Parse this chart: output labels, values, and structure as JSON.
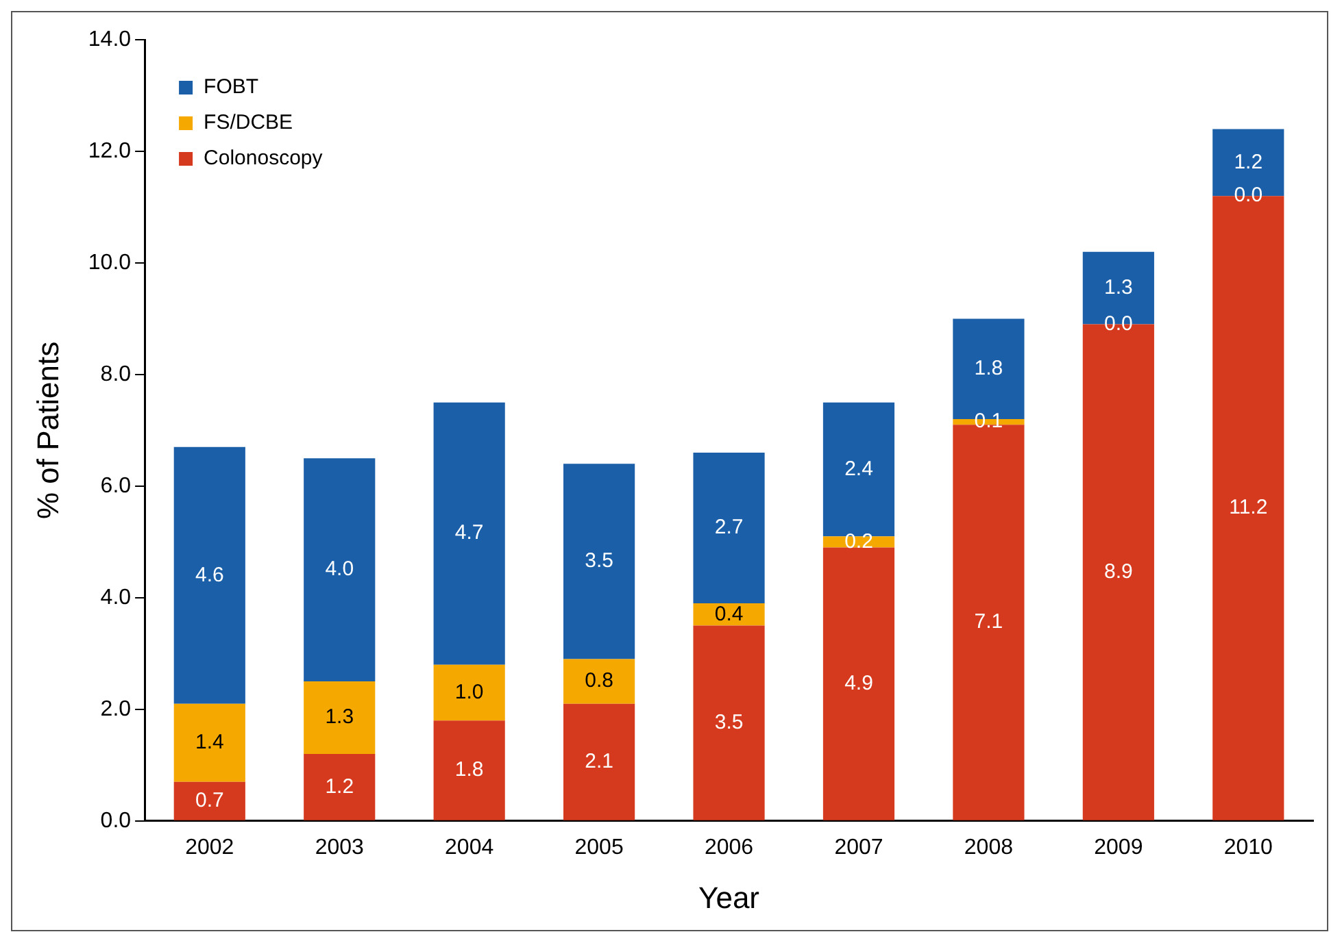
{
  "chart_data": {
    "type": "bar",
    "xlabel": "Year",
    "ylabel": "% of Patients",
    "categories": [
      "2002",
      "2003",
      "2004",
      "2005",
      "2006",
      "2007",
      "2008",
      "2009",
      "2010"
    ],
    "stacked": true,
    "legend": "top left",
    "grid": false,
    "ylim": [
      0,
      14
    ],
    "yticks": [
      {
        "value": 0,
        "label": "0.0"
      },
      {
        "value": 2,
        "label": "2.0"
      },
      {
        "value": 4,
        "label": "4.0"
      },
      {
        "value": 6,
        "label": "6.0"
      },
      {
        "value": 8,
        "label": "8.0"
      },
      {
        "value": 10,
        "label": "10.0"
      },
      {
        "value": 12,
        "label": "12.0"
      },
      {
        "value": 14,
        "label": "14.0"
      }
    ],
    "series": [
      {
        "name": "Colonoscopy",
        "color": "#d63a1e",
        "values": [
          0.7,
          1.2,
          1.8,
          2.1,
          3.5,
          4.9,
          7.1,
          8.9,
          11.2
        ],
        "value_labels": [
          "0.7",
          "1.2",
          "1.8",
          "2.1",
          "3.5",
          "4.9",
          "7.1",
          "8.9",
          "11.2"
        ]
      },
      {
        "name": "FS/DCBE",
        "color": "#f5a800",
        "values": [
          1.4,
          1.3,
          1.0,
          0.8,
          0.4,
          0.2,
          0.1,
          0.0,
          0.0
        ],
        "value_labels": [
          "1.4",
          "1.3",
          "1.0",
          "0.8",
          "0.4",
          "0.2",
          "0.1",
          "0.0",
          "0.0"
        ]
      },
      {
        "name": "FOBT",
        "color": "#1a5fa8",
        "values": [
          4.6,
          4.0,
          4.7,
          3.5,
          2.7,
          2.4,
          1.8,
          1.3,
          1.2
        ],
        "value_labels": [
          "4.6",
          "4.0",
          "4.7",
          "3.5",
          "2.7",
          "2.4",
          "1.8",
          "1.3",
          "1.2"
        ]
      }
    ]
  }
}
